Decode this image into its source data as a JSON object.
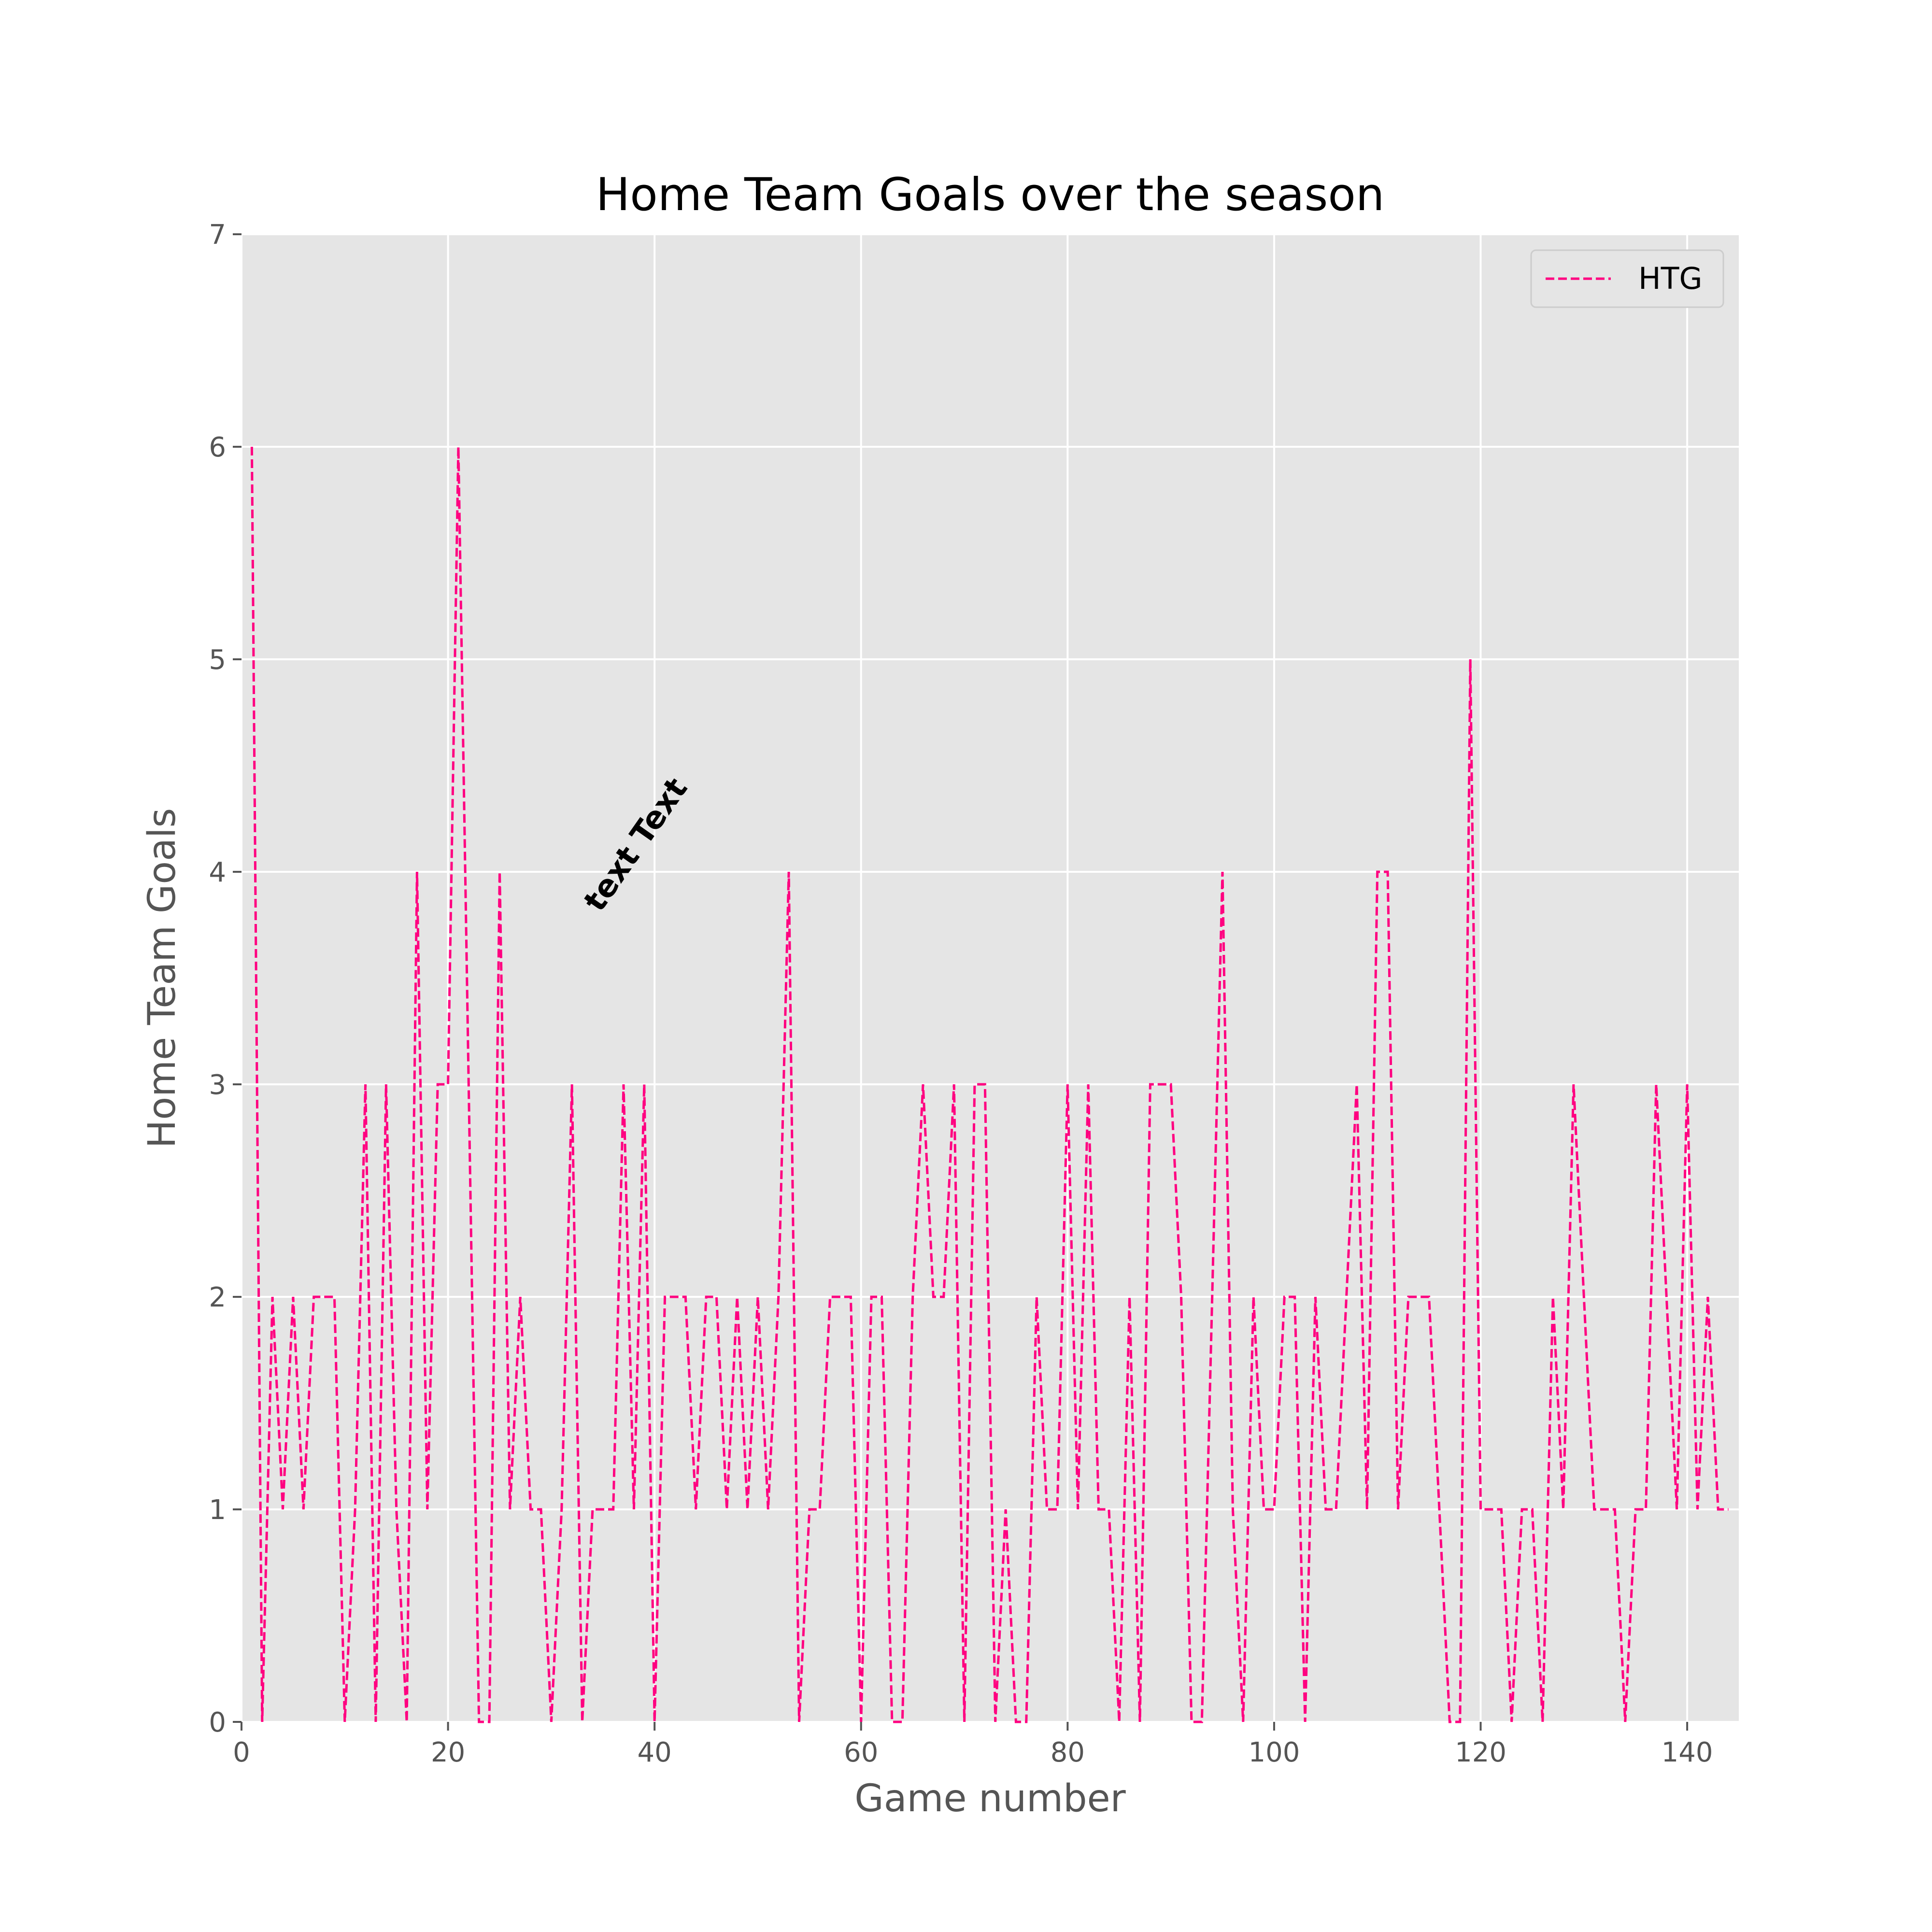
{
  "chart_data": {
    "type": "line",
    "title": "Home Team Goals over the season",
    "xlabel": "Game number",
    "ylabel": "Home Team Goals",
    "xlim": [
      0,
      145
    ],
    "ylim": [
      0,
      7
    ],
    "xticks": [
      0,
      20,
      40,
      60,
      80,
      100,
      120,
      140
    ],
    "yticks": [
      0,
      1,
      2,
      3,
      4,
      5,
      6,
      7
    ],
    "grid": true,
    "legend_position": "top-right",
    "annotation": {
      "text": "text Text",
      "x": 39,
      "y": 4.1,
      "rotation_deg": 55
    },
    "series": [
      {
        "name": "HTG",
        "color": "#ff0080",
        "line_style": "dashed",
        "x": [
          1,
          2,
          3,
          4,
          5,
          6,
          7,
          8,
          9,
          10,
          11,
          12,
          13,
          14,
          15,
          16,
          17,
          18,
          19,
          20,
          21,
          22,
          23,
          24,
          25,
          26,
          27,
          28,
          29,
          30,
          31,
          32,
          33,
          34,
          35,
          36,
          37,
          38,
          39,
          40,
          41,
          42,
          43,
          44,
          45,
          46,
          47,
          48,
          49,
          50,
          51,
          52,
          53,
          54,
          55,
          56,
          57,
          58,
          59,
          60,
          61,
          62,
          63,
          64,
          65,
          66,
          67,
          68,
          69,
          70,
          71,
          72,
          73,
          74,
          75,
          76,
          77,
          78,
          79,
          80,
          81,
          82,
          83,
          84,
          85,
          86,
          87,
          88,
          89,
          90,
          91,
          92,
          93,
          94,
          95,
          96,
          97,
          98,
          99,
          100,
          101,
          102,
          103,
          104,
          105,
          106,
          107,
          108,
          109,
          110,
          111,
          112,
          113,
          114,
          115,
          116,
          117,
          118,
          119,
          120,
          121,
          122,
          123,
          124,
          125,
          126,
          127,
          128,
          129,
          130,
          131,
          132,
          133,
          134,
          135,
          136,
          137,
          138,
          139,
          140,
          141,
          142,
          143,
          144
        ],
        "values": [
          6,
          0,
          2,
          1,
          2,
          1,
          2,
          2,
          2,
          0,
          1,
          3,
          0,
          3,
          1,
          0,
          4,
          1,
          3,
          3,
          6,
          3,
          0,
          0,
          4,
          1,
          2,
          1,
          1,
          0,
          1,
          3,
          0,
          1,
          1,
          1,
          3,
          1,
          3,
          0,
          2,
          2,
          2,
          1,
          2,
          2,
          1,
          2,
          1,
          2,
          1,
          2,
          4,
          0,
          1,
          1,
          2,
          2,
          2,
          0,
          2,
          2,
          0,
          0,
          2,
          3,
          2,
          2,
          3,
          0,
          3,
          3,
          0,
          1,
          0,
          0,
          2,
          1,
          1,
          3,
          1,
          3,
          1,
          1,
          0,
          2,
          0,
          3,
          3,
          3,
          2,
          0,
          0,
          2,
          4,
          1,
          0,
          2,
          1,
          1,
          2,
          2,
          0,
          2,
          1,
          1,
          2,
          3,
          1,
          4,
          4,
          1,
          2,
          2,
          2,
          1,
          0,
          0,
          5,
          1,
          1,
          1,
          0,
          1,
          1,
          0,
          2,
          1,
          3,
          2,
          1,
          1,
          1,
          0,
          1,
          1,
          3,
          2,
          1,
          3,
          1,
          2,
          1,
          1
        ]
      }
    ]
  }
}
